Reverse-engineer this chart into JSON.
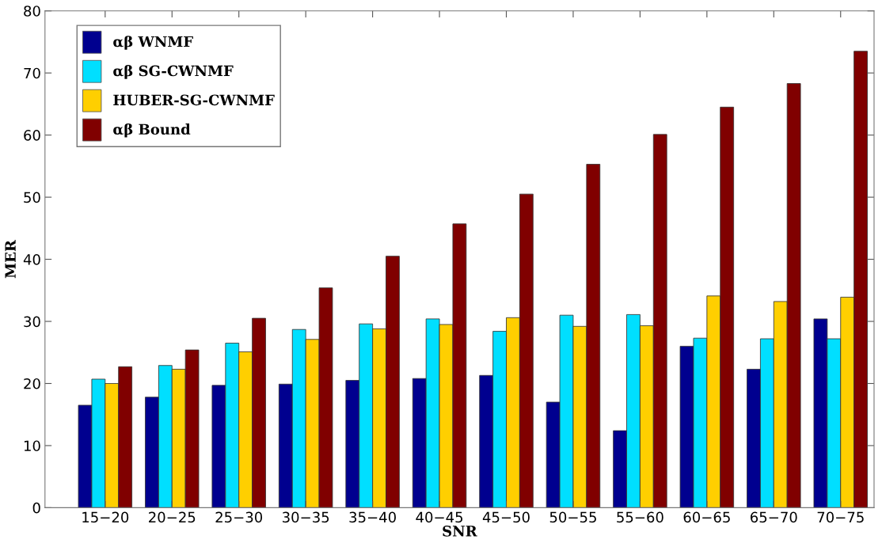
{
  "chart_data": {
    "type": "bar",
    "xlabel": "SNR",
    "ylabel": "MER",
    "categories": [
      "15−20",
      "20−25",
      "25−30",
      "30−35",
      "35−40",
      "40−45",
      "45−50",
      "50−55",
      "55−60",
      "60−65",
      "65−70",
      "70−75"
    ],
    "series": [
      {
        "name": "αβ WNMF",
        "color": "#00008f",
        "values": [
          16.5,
          17.8,
          19.7,
          19.9,
          20.5,
          20.8,
          21.3,
          17.0,
          12.4,
          26.0,
          22.3,
          30.4
        ]
      },
      {
        "name": "αβ SG-CWNMF",
        "color": "#00dfff",
        "values": [
          20.7,
          22.9,
          26.5,
          28.7,
          29.6,
          30.4,
          28.4,
          31.0,
          31.1,
          27.3,
          27.2,
          27.2
        ]
      },
      {
        "name": "HUBER-SG-CWNMF",
        "color": "#ffcf00",
        "values": [
          20.0,
          22.3,
          25.1,
          27.1,
          28.8,
          29.5,
          30.6,
          29.2,
          29.3,
          34.1,
          33.2,
          33.9
        ]
      },
      {
        "name": "αβ Bound",
        "color": "#800000",
        "values": [
          22.7,
          25.4,
          30.5,
          35.4,
          40.5,
          45.7,
          50.5,
          55.3,
          60.1,
          64.5,
          68.3,
          73.5
        ]
      }
    ],
    "ylim": [
      0,
      80
    ],
    "yticks": [
      0,
      10,
      20,
      30,
      40,
      50,
      60,
      70,
      80
    ],
    "grid": false,
    "legend": "top left"
  }
}
